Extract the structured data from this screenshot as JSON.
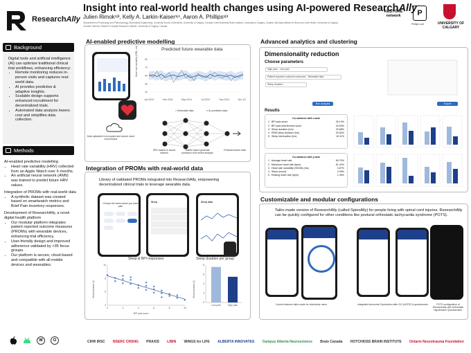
{
  "brand": {
    "name": "Research",
    "name_italic": "Ally"
  },
  "header": {
    "title": "Insight into real-world health changes using AI-powered Research",
    "title_italic": "Ally",
    "authors": "Julien Rimok¹ʲ³, Kelly A. Larkin-Kaiser¹ʲ⁴, Aaron A. Phillips¹ʲ³",
    "affiliations": "¹Department of Physiology and Pharmacology, Biomedical Engineering, Cumming School of Medicine, University of Calgary, Canada ²Libin/Hotchkiss Brain Institute, University of Calgary, Canada ³McCaig Institute for Bone and Joint Health, University of Calgary, Canada ⁴Alberta Children's Hospital Research Institute, University of Calgary, Canada",
    "partners": [
      "RESTORE network",
      "Phillips Lab",
      "UNIVERSITY OF CALGARY"
    ]
  },
  "background": {
    "heading": "Background",
    "intro": "Digital tools and artificial intelligence (AI) can optimize traditional clinical trial workflows, enhancing efficiency:",
    "bullets": [
      "Remote monitoring reduces in-person visits and captures real-world data.",
      "AI provides predictive & adaptive insights.",
      "Scalable design supports enhanced recruitment for decentralized trials.",
      "Automated data analysis lowers cost and simplifies data collection."
    ]
  },
  "methods": {
    "heading": "Methods",
    "p1": "AI-enabled predictive modelling",
    "b1": [
      "Heart rate variability (HRV) collected from an Apple Watch over 6 months.",
      "An artificial neural network (ANN) was trained to predict future HRV values."
    ],
    "p2": "Integration of PROMs with real-world data",
    "b2": [
      "A synthetic dataset was created based on smartwatch metrics and Brief Pain inventory responses."
    ],
    "p3": "Development of ResearchAlly, a novel digital health platform",
    "b3": [
      "Our modular platform integrates patient reported outcome measures (PROMs) with wearable devices, enhancing trial efficiency.",
      "User-friendly design and improved adherence validated by >35 focus groups.",
      "Our platform is secure, cloud-based and compatible with all mobile devices and wearables."
    ]
  },
  "footer_icons": [
    "apple-icon",
    "android-icon",
    "watch-icon",
    "wear-icon"
  ],
  "ai_section": {
    "title": "AI-enabled predictive modelling",
    "chart_title": "Predicted future wearable data",
    "ylabel": "Heart rate variability (HRV, ms)",
    "legend": [
      "Wearable data",
      "AI-predicted data"
    ],
    "captions": [
      "Data uploaded to encrypted and secure cloud environment",
      "HRV loaded to neural network",
      "Hidden layers generate prediction from series analysis",
      "Predicted future data"
    ]
  },
  "chart_data": [
    {
      "type": "line",
      "title": "Predicted future wearable data",
      "ylabel": "Heart rate variability (HRV, ms)",
      "x_ticks": [
        "Jan 2024",
        "Mar 2024",
        "May 2024",
        "Jul 2024",
        "Sep 2024",
        "Nov 2024"
      ],
      "y_ticks": [
        40,
        50,
        60,
        70,
        80
      ],
      "ylim": [
        35,
        85
      ],
      "series": [
        {
          "name": "Wearable data",
          "color": "#8a8a8a",
          "values": [
            62,
            58,
            66,
            55,
            60,
            64,
            52,
            59,
            67,
            57,
            61,
            54,
            63,
            58,
            60,
            56,
            65,
            59,
            57,
            62,
            54,
            60,
            58,
            63
          ]
        },
        {
          "name": "AI-predicted data",
          "color": "#2f6bbd",
          "values": [
            60,
            61,
            59,
            62,
            58,
            60,
            61,
            59,
            60,
            62,
            58,
            59,
            61,
            60,
            58,
            62,
            59,
            61,
            60,
            59,
            61,
            58,
            60,
            61
          ]
        }
      ]
    },
    {
      "type": "scatter",
      "title": "Sleep & BPI responses",
      "xlabel": "BPI pain score",
      "ylabel": "Sleep duration (h)",
      "x_ticks": [
        0,
        2,
        4,
        6,
        8,
        10
      ],
      "y_ticks": [
        4,
        6,
        8,
        10
      ],
      "points": [
        [
          0,
          8.5
        ],
        [
          1,
          8.1
        ],
        [
          1,
          7.6
        ],
        [
          2,
          7.9
        ],
        [
          2,
          7.3
        ],
        [
          3,
          7.2
        ],
        [
          3,
          7.8
        ],
        [
          4,
          7.0
        ],
        [
          4,
          6.6
        ],
        [
          5,
          6.9
        ],
        [
          5,
          6.3
        ],
        [
          6,
          6.4
        ],
        [
          6,
          5.9
        ],
        [
          7,
          5.8
        ],
        [
          7,
          6.2
        ],
        [
          8,
          5.4
        ],
        [
          8,
          5.7
        ],
        [
          9,
          5.1
        ],
        [
          9,
          5.5
        ],
        [
          10,
          4.8
        ],
        [
          3,
          8.2
        ],
        [
          5,
          7.4
        ],
        [
          7,
          5.2
        ],
        [
          2,
          8.4
        ],
        [
          6,
          6.8
        ]
      ]
    },
    {
      "type": "bar",
      "title": "Sleep duration per group",
      "categories": [
        "Low pain",
        "High pain"
      ],
      "values": [
        7.6,
        5.5
      ],
      "ylabel": "Sleep duration (h)",
      "y_ticks": [
        0,
        2,
        4,
        6,
        8
      ]
    }
  ],
  "proms_section": {
    "title": "Integration of PROMs with real-world data",
    "desc": "Library of validated PROMs integrated into ResearchAlly, empowering decentralized clinical trials to leverage wearable data.",
    "phone_labels": [
      "Choose the week where you have pain",
      "Sleep",
      "Sleep data"
    ]
  },
  "analytics": {
    "section_title": "Advanced analytics and clustering",
    "panel_title": "Dimensionality reduction",
    "params_title": "Choose parameters",
    "params": [
      "High pain",
      "Low pain",
      "Patient reported outcome measures",
      "Wearable data",
      "Sleep duration"
    ],
    "buttons": [
      "Run analysis",
      "Export"
    ],
    "results_title": "Results",
    "co_var_x_title": "Co-variance with x-axis",
    "co_var_x": [
      {
        "n": "1",
        "label": "BPI pain score",
        "val": "26.14%"
      },
      {
        "n": "2",
        "label": "BPI pain interference score",
        "val": "25.53%"
      },
      {
        "n": "3",
        "label": "Sleep duration (hrs)",
        "val": "20.68%"
      },
      {
        "n": "4",
        "label": "REM sleep duration (hrs)",
        "val": "20.60%"
      },
      {
        "n": "5",
        "label": "Sleep interruption (hrs)",
        "val": "10.11%"
      }
    ],
    "co_var_y_title": "Co-variance with y-axis",
    "co_var_y": [
      {
        "n": "1",
        "label": "Average heart rate",
        "val": "60.70%"
      },
      {
        "n": "2",
        "label": "Maximum heart rate (bpm)",
        "val": "51.42%"
      },
      {
        "n": "3",
        "label": "Heart rate variability (SDNN) (ms)",
        "val": "3.67%"
      },
      {
        "n": "4",
        "label": "Steps (count)",
        "val": "2.99%"
      },
      {
        "n": "5",
        "label": "Resting heart rate (bpm)",
        "val": "1.49%"
      }
    ]
  },
  "custom": {
    "section_title": "Customizable and modular configurations",
    "desc": "Tailor-made version of ResearchAlly (called SpinoAlly) for people living with spinal cord injuries. ResearchAlly can be quickly configured for other conditions like postural orthostatic tachycardia syndrome (POTS).",
    "captions": [
      "Custom features tailor-made for wheelchair users",
      "Integrated Autonomic Dysfunction after SCI (ADFSCI) questionnaire",
      "POTS configuration of ResearchAlly with Orthostatic Hypotension Questionnaire."
    ]
  },
  "sponsors": [
    "CIHR IRSC",
    "NSERC CRSNG",
    "PRAXIS",
    "LIBIN",
    "WINGS for LIFE",
    "ALBERTA INNOVATES",
    "Campus Alberta Neuroscience",
    "Brain Canada",
    "HOTCHKISS BRAIN INSTITUTE",
    "Ontario Neurotrauma Foundation"
  ]
}
